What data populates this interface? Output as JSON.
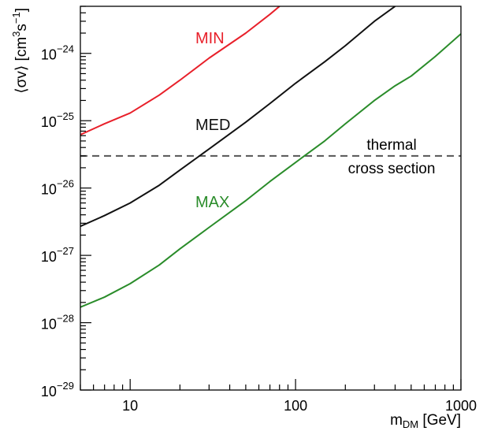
{
  "chart_data": {
    "type": "line",
    "title": "",
    "xscale": "log",
    "yscale": "log",
    "xlim": [
      5,
      1000
    ],
    "ylim": [
      1e-29,
      5e-24
    ],
    "xlabel": {
      "base": "m",
      "sub": "DM",
      "unit": " [GeV]"
    },
    "ylabel": {
      "text": "⟨σv⟩ [cm",
      "sup1": "3",
      "mid": "s",
      "sup2": "−1",
      "end": "]"
    },
    "xticks": [
      {
        "value": 10,
        "label": "10"
      },
      {
        "value": 100,
        "label": "100"
      },
      {
        "value": 1000,
        "label": "1000"
      }
    ],
    "yticks": [
      {
        "value": 1e-29,
        "base": "10",
        "exp": "−29"
      },
      {
        "value": 1e-28,
        "base": "10",
        "exp": "−28"
      },
      {
        "value": 1e-27,
        "base": "10",
        "exp": "−27"
      },
      {
        "value": 1e-26,
        "base": "10",
        "exp": "−26"
      },
      {
        "value": 1e-25,
        "base": "10",
        "exp": "−25"
      },
      {
        "value": 1e-24,
        "base": "10",
        "exp": "−24"
      }
    ],
    "grid": false,
    "series": [
      {
        "name": "MIN",
        "color": "#e8202a",
        "x": [
          5,
          7,
          10,
          15,
          20,
          30,
          50,
          70,
          80
        ],
        "y": [
          6.2e-26,
          9e-26,
          1.3e-25,
          2.4e-25,
          4e-25,
          8.5e-25,
          2e-24,
          3.8e-24,
          5e-24
        ]
      },
      {
        "name": "MED",
        "color": "#111111",
        "x": [
          5,
          7,
          10,
          15,
          20,
          30,
          50,
          70,
          100,
          150,
          200,
          300,
          400
        ],
        "y": [
          2.7e-27,
          3.9e-27,
          6e-27,
          1.1e-26,
          1.85e-26,
          3.8e-26,
          9.5e-26,
          1.8e-25,
          3.6e-25,
          7.5e-25,
          1.3e-24,
          3e-24,
          5e-24
        ]
      },
      {
        "name": "MAX",
        "color": "#2a8c2a",
        "x": [
          5,
          7,
          10,
          15,
          20,
          30,
          50,
          70,
          100,
          150,
          200,
          300,
          400,
          500,
          700,
          1000
        ],
        "y": [
          1.7e-28,
          2.4e-28,
          3.8e-28,
          7.2e-28,
          1.25e-27,
          2.6e-27,
          6.5e-27,
          1.25e-26,
          2.4e-26,
          5e-26,
          9e-26,
          2e-25,
          3.3e-25,
          4.6e-25,
          9e-25,
          1.95e-24
        ]
      }
    ],
    "reference_line": {
      "y": 3e-26,
      "style": "dashed",
      "color": "#555555",
      "label_lines": [
        "thermal",
        "cross section"
      ]
    }
  }
}
